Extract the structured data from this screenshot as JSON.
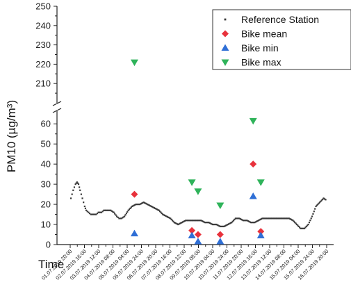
{
  "chart_data": {
    "type": "scatter",
    "ylabel": "PM10 (µg/m³)",
    "xlabel": "Time",
    "y_break": {
      "lower": [
        0,
        65
      ],
      "upper": [
        200,
        250
      ]
    },
    "yticks_lower": [
      0,
      10,
      20,
      30,
      40,
      50,
      60
    ],
    "yticks_upper": [
      210,
      220,
      230,
      240,
      250
    ],
    "xticks": [
      "01.07.2019 20:00",
      "02.07.2019 16:00",
      "03.07.2019 12:00",
      "04.07.2019 08:00",
      "05.07.2019 04:00",
      "05.07.2019 24:00",
      "06.07.2019 20:00",
      "07.07.2019 16:00",
      "08.07.2019 12:00",
      "09.07.2019 08:00",
      "10.07.2019 04:00",
      "10.07.2019 24:00",
      "11.07.2019 20:00",
      "12.07.2019 16:00",
      "13.07.2019 12:00",
      "14.07.2019 08:00",
      "15.07.2019 04:00",
      "15.07.2019 24:00",
      "16.07.2019 20:00"
    ],
    "legend": {
      "position": "top-right",
      "entries": [
        "Reference Station",
        "Bike mean",
        "Bike min",
        "Bike max"
      ]
    },
    "colors": {
      "reference": "#3a3a3a",
      "bike_mean": "#e8323c",
      "bike_min": "#2f6fd6",
      "bike_max": "#2fb35a"
    },
    "series": [
      {
        "name": "Reference Station",
        "marker": "dot",
        "line": [
          [
            0,
            23
          ],
          [
            0.3,
            27
          ],
          [
            0.6,
            30
          ],
          [
            0.8,
            31
          ],
          [
            1.0,
            30
          ],
          [
            1.2,
            27
          ],
          [
            1.5,
            23
          ],
          [
            1.8,
            19
          ],
          [
            2.0,
            17
          ],
          [
            2.3,
            16
          ],
          [
            2.6,
            15
          ],
          [
            3.0,
            15
          ],
          [
            3.3,
            15
          ],
          [
            3.6,
            16
          ],
          [
            4.0,
            16
          ],
          [
            4.3,
            17
          ],
          [
            4.8,
            17
          ],
          [
            5.2,
            17
          ],
          [
            5.6,
            16
          ],
          [
            6.0,
            14
          ],
          [
            6.3,
            13
          ],
          [
            6.6,
            13
          ],
          [
            7.0,
            14
          ],
          [
            7.5,
            17
          ],
          [
            8.0,
            19
          ],
          [
            8.5,
            20
          ],
          [
            9.0,
            20
          ],
          [
            9.5,
            21
          ],
          [
            10.0,
            20
          ],
          [
            10.5,
            19
          ],
          [
            11.0,
            18
          ],
          [
            11.5,
            17
          ],
          [
            12.0,
            15
          ],
          [
            12.5,
            14
          ],
          [
            13.0,
            13
          ],
          [
            13.5,
            11
          ],
          [
            14.0,
            10
          ],
          [
            14.5,
            11
          ],
          [
            15.0,
            12
          ],
          [
            15.5,
            12
          ],
          [
            16.0,
            12
          ],
          [
            16.5,
            12
          ],
          [
            17.0,
            12
          ],
          [
            17.5,
            11
          ],
          [
            18.0,
            11
          ],
          [
            18.5,
            10
          ],
          [
            19.0,
            10
          ],
          [
            19.5,
            9
          ],
          [
            20.0,
            9
          ],
          [
            20.5,
            10
          ],
          [
            21.0,
            11
          ],
          [
            21.5,
            13
          ],
          [
            22.0,
            13
          ],
          [
            22.5,
            12
          ],
          [
            23.0,
            12
          ],
          [
            23.5,
            11
          ],
          [
            24.0,
            11
          ],
          [
            24.5,
            12
          ],
          [
            25.0,
            13
          ],
          [
            25.5,
            13
          ],
          [
            26.0,
            13
          ],
          [
            26.5,
            13
          ],
          [
            27.0,
            13
          ],
          [
            27.5,
            13
          ],
          [
            28.0,
            13
          ],
          [
            28.5,
            13
          ],
          [
            29.0,
            12
          ],
          [
            29.5,
            10
          ],
          [
            30.0,
            8
          ],
          [
            30.5,
            8
          ],
          [
            31.0,
            10
          ],
          [
            31.5,
            14
          ],
          [
            32.0,
            19
          ],
          [
            32.5,
            21
          ],
          [
            33.0,
            23
          ],
          [
            33.4,
            22
          ]
        ]
      },
      {
        "name": "Bike mean",
        "marker": "diamond",
        "points": [
          [
            8.3,
            25
          ],
          [
            15.8,
            7
          ],
          [
            16.6,
            5
          ],
          [
            19.5,
            5
          ],
          [
            23.8,
            40
          ],
          [
            24.8,
            6.5
          ]
        ]
      },
      {
        "name": "Bike min",
        "marker": "triangle-up",
        "points": [
          [
            8.3,
            5.5
          ],
          [
            15.8,
            4.5
          ],
          [
            16.6,
            1.5
          ],
          [
            19.5,
            1.5
          ],
          [
            23.8,
            24
          ],
          [
            24.8,
            4.5
          ]
        ]
      },
      {
        "name": "Bike max",
        "marker": "triangle-down",
        "points": [
          [
            8.3,
            221
          ],
          [
            15.8,
            31
          ],
          [
            16.6,
            26.5
          ],
          [
            19.5,
            19.5
          ],
          [
            23.8,
            61.5
          ],
          [
            24.8,
            31
          ]
        ]
      }
    ]
  }
}
